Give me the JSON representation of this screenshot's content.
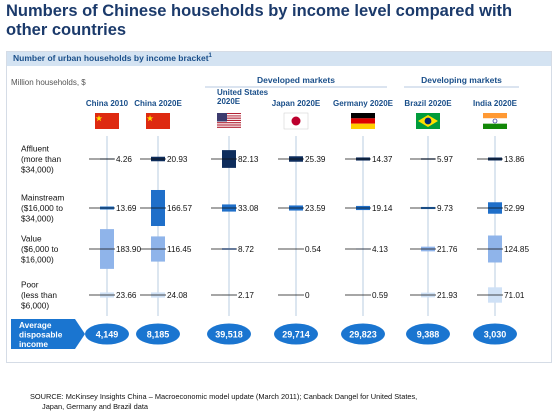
{
  "title": "Numbers of Chinese households by income level compared with other countries",
  "subtitle": "Number of urban households by income bracket",
  "subtitle_footnote": "1",
  "unit_label": "Million households, $",
  "groups": [
    {
      "label": "Developed markets",
      "countries": [
        2,
        3,
        4
      ]
    },
    {
      "label": "Developing markets",
      "countries": [
        5,
        6
      ]
    }
  ],
  "source": [
    "SOURCE: McKinsey Insights China – Macroeconomic model update (March 2011); Canback Dangel for United States,",
    "Japan, Germany and Brazil data"
  ],
  "colors": {
    "affluent": "#0e2d5c",
    "mainstream": "#1f6fc9",
    "value": "#8fb4ea",
    "poor": "#cfe1f6",
    "axis": "#b9cce2",
    "badge": "#1a75d0",
    "title": "#1b3a6b"
  },
  "chart_data": {
    "type": "bar",
    "subtype": "stacked-centered-vertical-bars",
    "categories": [
      "China 2010",
      "China 2020E",
      "United States 2020E",
      "Japan 2020E",
      "Germany 2020E",
      "Brazil 2020E",
      "India 2020E"
    ],
    "brackets": [
      {
        "label": [
          "Affluent",
          "(more than",
          "$34,000)"
        ]
      },
      {
        "label": [
          "Mainstream",
          "($16,000 to",
          "$34,000)"
        ]
      },
      {
        "label": [
          "Value",
          "($6,000 to",
          "$16,000)"
        ]
      },
      {
        "label": [
          "Poor",
          "(less than",
          "$6,000)"
        ]
      }
    ],
    "series": [
      {
        "values": [
          4.26,
          20.93,
          82.13,
          25.39,
          14.37,
          5.97,
          13.86
        ]
      },
      {
        "values": [
          13.69,
          166.57,
          33.08,
          23.59,
          19.14,
          9.73,
          52.99
        ]
      },
      {
        "values": [
          183.9,
          116.45,
          8.72,
          0.54,
          4.13,
          21.76,
          124.85
        ]
      },
      {
        "values": [
          23.66,
          24.08,
          2.17,
          0,
          0.59,
          21.93,
          71.01
        ]
      }
    ],
    "value_labels": [
      [
        "4.26",
        "20.93",
        "82.13",
        "25.39",
        "14.37",
        "5.97",
        "13.86"
      ],
      [
        "13.69",
        "166.57",
        "33.08",
        "23.59",
        "19.14",
        "9.73",
        "52.99"
      ],
      [
        "183.90",
        "116.45",
        "8.72",
        "0.54",
        "4.13",
        "21.76",
        "124.85"
      ],
      [
        "23.66",
        "24.08",
        "2.17",
        "0",
        "0.59",
        "21.93",
        "71.01"
      ]
    ],
    "avg_income_label": [
      "Average",
      "disposable",
      "income"
    ],
    "avg_income": [
      "4,149",
      "8,185",
      "39,518",
      "29,714",
      "29,823",
      "9,388",
      "3,030"
    ],
    "flags": [
      "china-flag-icon",
      "china-flag-icon",
      "usa-flag-icon",
      "japan-flag-icon",
      "germany-flag-icon",
      "brazil-flag-icon",
      "india-flag-icon"
    ]
  }
}
